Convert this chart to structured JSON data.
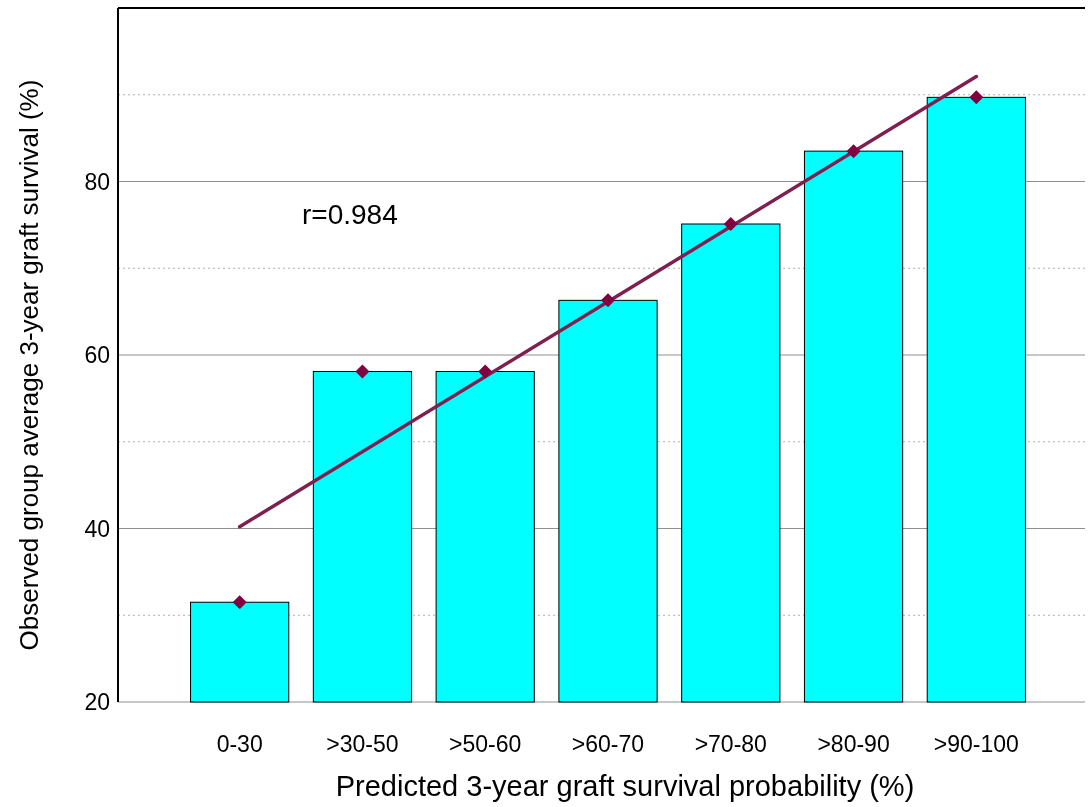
{
  "chart_data": {
    "type": "bar",
    "xlabel": "Predicted 3-year graft survival probability (%)",
    "ylabel": "Observed group average 3-year graft survival (%)",
    "categories": [
      "0-30",
      ">30-50",
      ">50-60",
      ">60-70",
      ">70-80",
      ">80-90",
      ">90-100"
    ],
    "series": [
      {
        "color": "#00ffff",
        "values": [
          31.5,
          58.1,
          58.1,
          66.3,
          75.1,
          83.5,
          89.7
        ]
      },
      {
        "type": "line",
        "color": "#7f1f4f",
        "line_style": "solid",
        "x": [
          "0-30",
          ">90-100"
        ],
        "values": [
          40.2,
          92.1
        ]
      },
      {
        "type": "scatter",
        "color": "#800040",
        "marker": "diamond",
        "x": [
          "0-30",
          ">30-50",
          ">50-60",
          ">60-70",
          ">70-80",
          ">80-90",
          ">90-100"
        ],
        "values": [
          31.5,
          58.1,
          58.1,
          66.3,
          75.1,
          83.5,
          89.7
        ]
      }
    ],
    "ylim": [
      20,
      100
    ],
    "yticks": [
      20,
      {
        "value": 30,
        "label": null
      },
      40,
      {
        "value": 50,
        "label": null
      },
      60,
      {
        "value": 70,
        "label": null
      },
      80,
      {
        "value": 90,
        "label": null
      }
    ],
    "grid": "y",
    "annotations": [
      "r=0.984"
    ]
  }
}
